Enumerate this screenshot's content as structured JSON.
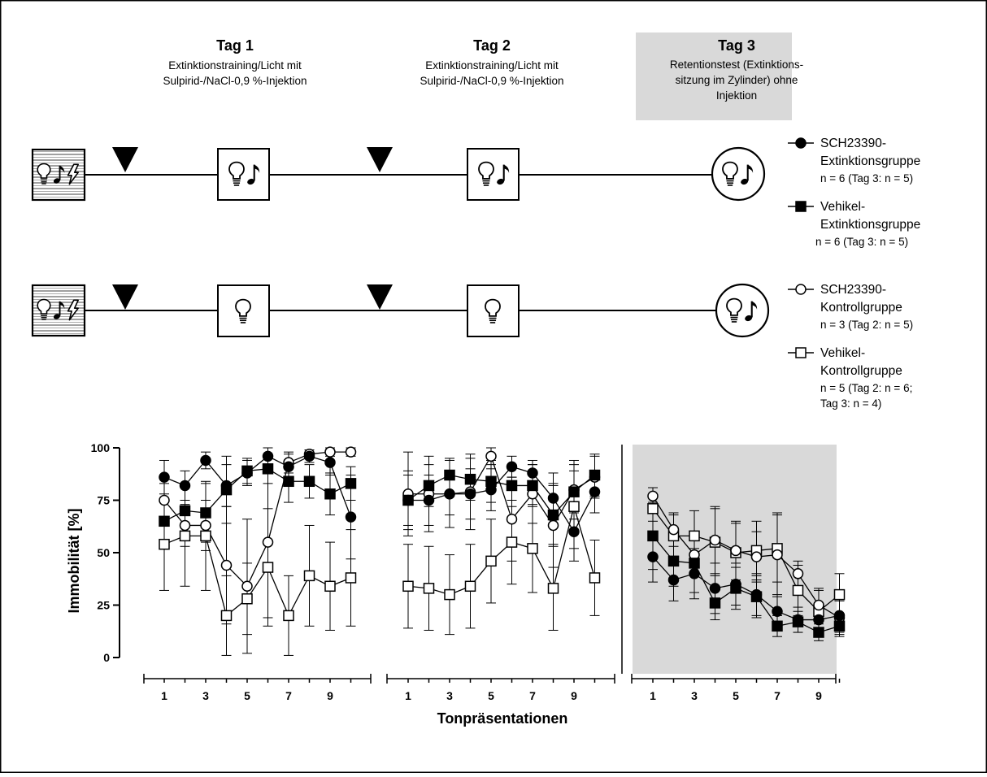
{
  "days": [
    {
      "title": "Tag 1",
      "lines": [
        "Extinktionstraining/Licht mit",
        "Sulpirid-/NaCl-0,9 %-Injektion"
      ]
    },
    {
      "title": "Tag 2",
      "lines": [
        "Extinktionstraining/Licht mit",
        "Sulpirid-/NaCl-0,9 %-Injektion"
      ]
    },
    {
      "title": "Tag 3",
      "lines": [
        "Retentionstest (Extinktions-",
        "sitzung im Zylinder)  ohne",
        "Injektion"
      ]
    }
  ],
  "legend": [
    {
      "marker": "filled-circle",
      "lines": [
        "SCH23390-",
        "Extinktionsgruppe"
      ],
      "n": [
        "n = 6 (Tag 3: n = 5)"
      ]
    },
    {
      "marker": "filled-square",
      "lines": [
        "Vehikel-",
        "Extinktionsgruppe"
      ],
      "n": [
        "n = 6 (Tag 3: n = 5)"
      ]
    },
    {
      "marker": "open-circle",
      "lines": [
        "SCH23390-",
        "Kontrollgruppe"
      ],
      "n": [
        "n = 3 (Tag 2: n = 5)"
      ]
    },
    {
      "marker": "open-square",
      "lines": [
        "Vehikel-",
        "Kontrollgruppe"
      ],
      "n": [
        "n = 5 (Tag 2: n = 6;",
        "Tag 3: n = 4)"
      ]
    }
  ],
  "colors": {
    "tag3_background": "#d9d9d9",
    "line": "#000000"
  },
  "icons": {
    "row1": [
      "light-tone-shock-icon",
      "injection-triangle-icon",
      "light-tone-icon",
      "injection-triangle-icon",
      "light-tone-icon",
      "light-tone-circle-icon"
    ],
    "row2": [
      "light-tone-shock-icon",
      "injection-triangle-icon",
      "light-icon",
      "injection-triangle-icon",
      "light-icon",
      "light-tone-circle-icon"
    ]
  },
  "chart_data": {
    "type": "line",
    "ylabel": "Immobilität [%]",
    "xlabel": "Tonpräsentationen",
    "ylim": [
      0,
      100
    ],
    "yticks": [
      "0",
      "25",
      "50",
      "75",
      "100"
    ],
    "xticks": [
      "1",
      "3",
      "5",
      "7",
      "9"
    ],
    "panels": [
      {
        "name": "Tag 1",
        "x": [
          1,
          2,
          3,
          4,
          5,
          6,
          7,
          8,
          9,
          10
        ],
        "series": [
          {
            "name": "SCH23390-Extinktionsgruppe",
            "marker": "filled-circle",
            "values": [
              86,
              82,
              94,
              82,
              88,
              96,
              91,
              96,
              93,
              67
            ],
            "err": [
              8,
              7,
              4,
              10,
              6,
              4,
              6,
              3,
              6,
              20
            ]
          },
          {
            "name": "Vehikel-Extinktionsgruppe",
            "marker": "filled-square",
            "values": [
              65,
              70,
              69,
              80,
              89,
              90,
              84,
              84,
              78,
              83
            ],
            "err": [
              10,
              12,
              14,
              16,
              6,
              7,
              10,
              8,
              10,
              8
            ]
          },
          {
            "name": "SCH23390-Kontrollgruppe",
            "marker": "open-circle",
            "values": [
              75,
              63,
              63,
              44,
              34,
              55,
              93,
              97,
              98,
              98
            ],
            "err": [
              8,
              10,
              12,
              28,
              32,
              36,
              5,
              2,
              2,
              2
            ]
          },
          {
            "name": "Vehikel-Kontrollgruppe",
            "marker": "open-square",
            "values": [
              54,
              58,
              58,
              20,
              28,
              43,
              20,
              39,
              34,
              38
            ],
            "err": [
              22,
              24,
              26,
              19,
              17,
              28,
              19,
              24,
              21,
              23
            ]
          }
        ]
      },
      {
        "name": "Tag 2",
        "x": [
          1,
          2,
          3,
          4,
          5,
          6,
          7,
          8,
          9,
          10
        ],
        "series": [
          {
            "name": "SCH23390-Extinktionsgruppe",
            "marker": "filled-circle",
            "values": [
              75,
              75,
              78,
              78,
              80,
              91,
              88,
              76,
              60,
              79
            ],
            "err": [
              14,
              12,
              10,
              12,
              10,
              5,
              6,
              12,
              14,
              10
            ]
          },
          {
            "name": "Vehikel-Extinktionsgruppe",
            "marker": "filled-square",
            "values": [
              75,
              82,
              87,
              85,
              84,
              82,
              82,
              68,
              79,
              87
            ],
            "err": [
              12,
              10,
              8,
              10,
              10,
              10,
              10,
              14,
              10,
              10
            ]
          },
          {
            "name": "SCH23390-Kontrollgruppe",
            "marker": "open-circle",
            "values": [
              78,
              78,
              78,
              79,
              96,
              66,
              78,
              63,
              80,
              86
            ],
            "err": [
              20,
              18,
              16,
              18,
              4,
              20,
              14,
              20,
              14,
              10
            ]
          },
          {
            "name": "Vehikel-Kontrollgruppe",
            "marker": "open-square",
            "values": [
              34,
              33,
              30,
              34,
              46,
              55,
              52,
              33,
              72,
              38
            ],
            "err": [
              20,
              20,
              19,
              20,
              20,
              20,
              21,
              20,
              20,
              18
            ]
          }
        ]
      },
      {
        "name": "Tag 3",
        "x": [
          1,
          2,
          3,
          4,
          5,
          6,
          7,
          8,
          9,
          10
        ],
        "series": [
          {
            "name": "SCH23390-Extinktionsgruppe",
            "marker": "filled-circle",
            "values": [
              48,
              37,
              40,
              33,
              35,
              30,
              22,
              18,
              18,
              20
            ],
            "err": [
              12,
              10,
              12,
              12,
              10,
              10,
              8,
              6,
              6,
              8
            ]
          },
          {
            "name": "Vehikel-Extinktionsgruppe",
            "marker": "filled-square",
            "values": [
              58,
              46,
              45,
              26,
              33,
              29,
              15,
              17,
              12,
              15
            ],
            "err": [
              16,
              12,
              14,
              8,
              10,
              10,
              5,
              5,
              4,
              5
            ]
          },
          {
            "name": "SCH23390-Kontrollgruppe",
            "marker": "open-circle",
            "values": [
              77,
              61,
              49,
              56,
              51,
              48,
              49,
              40,
              25,
              19
            ],
            "err": [
              4,
              8,
              10,
              16,
              14,
              12,
              20,
              6,
              8,
              8
            ]
          },
          {
            "name": "Vehikel-Kontrollgruppe",
            "marker": "open-square",
            "values": [
              71,
              58,
              58,
              55,
              50,
              51,
              52,
              32,
              22,
              30
            ],
            "err": [
              6,
              10,
              12,
              16,
              14,
              14,
              16,
              12,
              10,
              10
            ]
          }
        ]
      }
    ]
  }
}
